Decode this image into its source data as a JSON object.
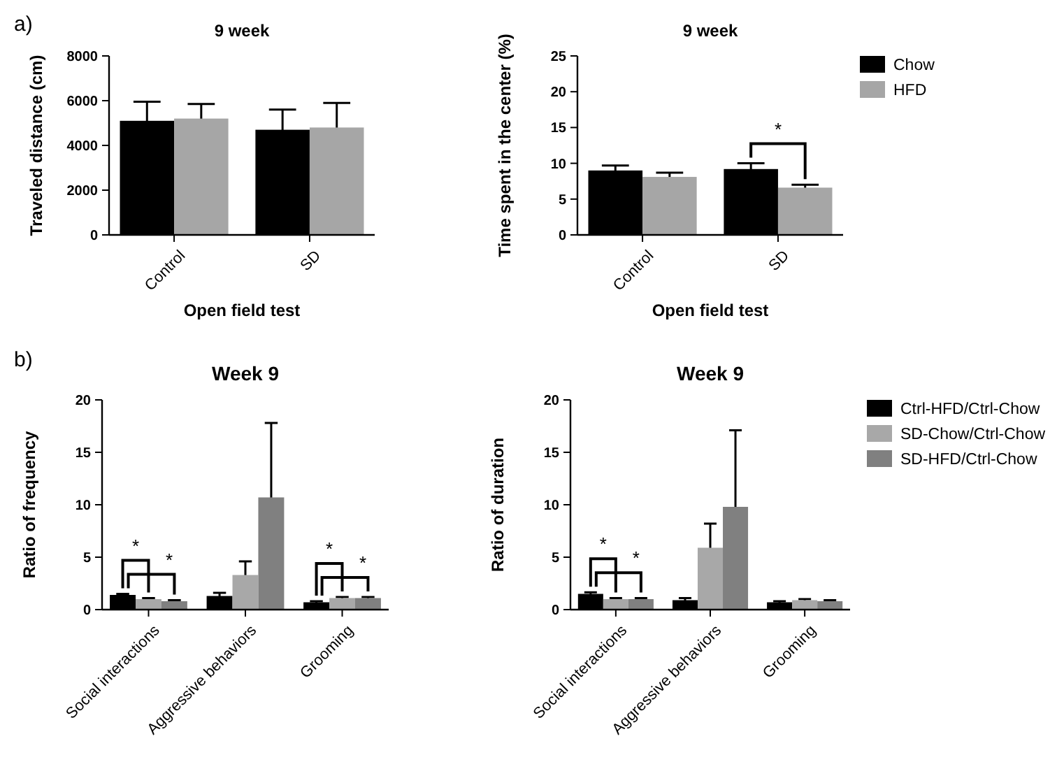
{
  "chart_data": [
    {
      "type": "bar",
      "title": "9 week",
      "xlabel": "Open field test",
      "ylabel": "Traveled distance (cm)",
      "categories": [
        "Control",
        "SD"
      ],
      "ylim": [
        0,
        8000
      ],
      "yticks": [
        0,
        2000,
        4000,
        6000,
        8000
      ],
      "annotations": [
        "a)"
      ],
      "series": [
        {
          "color": "#000000",
          "values": [
            5100,
            4700
          ],
          "errors": [
            850,
            900
          ]
        },
        {
          "color": "#a6a6a6",
          "values": [
            5200,
            4800
          ],
          "errors": [
            650,
            1100
          ]
        }
      ]
    },
    {
      "type": "bar",
      "title": "9 week",
      "xlabel": "Open field test",
      "ylabel": "Time spent in the center (%)",
      "categories": [
        "Control",
        "SD"
      ],
      "ylim": [
        0,
        25
      ],
      "yticks": [
        0,
        5,
        10,
        15,
        20,
        25
      ],
      "legend": "right",
      "annotations": [
        "*"
      ],
      "series": [
        {
          "name": "Chow",
          "color": "#000000",
          "values": [
            9.0,
            9.2
          ],
          "errors": [
            0.7,
            0.8
          ]
        },
        {
          "name": "HFD",
          "color": "#a6a6a6",
          "values": [
            8.1,
            6.6
          ],
          "errors": [
            0.6,
            0.4
          ]
        }
      ]
    },
    {
      "type": "bar",
      "title": "Week 9",
      "ylabel": "Ratio of frequency",
      "categories": [
        "Social interactions",
        "Aggressive behaviors",
        "Grooming"
      ],
      "ylim": [
        0,
        20
      ],
      "yticks": [
        0,
        5,
        10,
        15,
        20
      ],
      "annotations": [
        "b)",
        "*",
        "*",
        "*",
        "*"
      ],
      "series": [
        {
          "color": "#000000",
          "values": [
            1.4,
            1.3,
            0.7
          ],
          "errors": [
            0.1,
            0.3,
            0.1
          ]
        },
        {
          "color": "#a8a8a8",
          "values": [
            1.0,
            3.3,
            1.1
          ],
          "errors": [
            0.1,
            1.3,
            0.1
          ]
        },
        {
          "color": "#808080",
          "values": [
            0.8,
            10.7,
            1.1
          ],
          "errors": [
            0.1,
            7.1,
            0.1
          ]
        }
      ]
    },
    {
      "type": "bar",
      "title": "Week 9",
      "ylabel": "Ratio of duration",
      "categories": [
        "Social interactions",
        "Aggressive behaviors",
        "Grooming"
      ],
      "ylim": [
        0,
        20
      ],
      "yticks": [
        0,
        5,
        10,
        15,
        20
      ],
      "legend": "right",
      "annotations": [
        "*",
        "*"
      ],
      "series": [
        {
          "name": "Ctrl-HFD/Ctrl-Chow",
          "color": "#000000",
          "values": [
            1.5,
            0.9,
            0.7
          ],
          "errors": [
            0.15,
            0.2,
            0.1
          ]
        },
        {
          "name": "SD-Chow/Ctrl-Chow",
          "color": "#a8a8a8",
          "values": [
            1.0,
            5.9,
            0.9
          ],
          "errors": [
            0.1,
            2.3,
            0.1
          ]
        },
        {
          "name": "SD-HFD/Ctrl-Chow",
          "color": "#808080",
          "values": [
            1.0,
            9.8,
            0.8
          ],
          "errors": [
            0.1,
            7.3,
            0.1
          ]
        }
      ]
    }
  ]
}
